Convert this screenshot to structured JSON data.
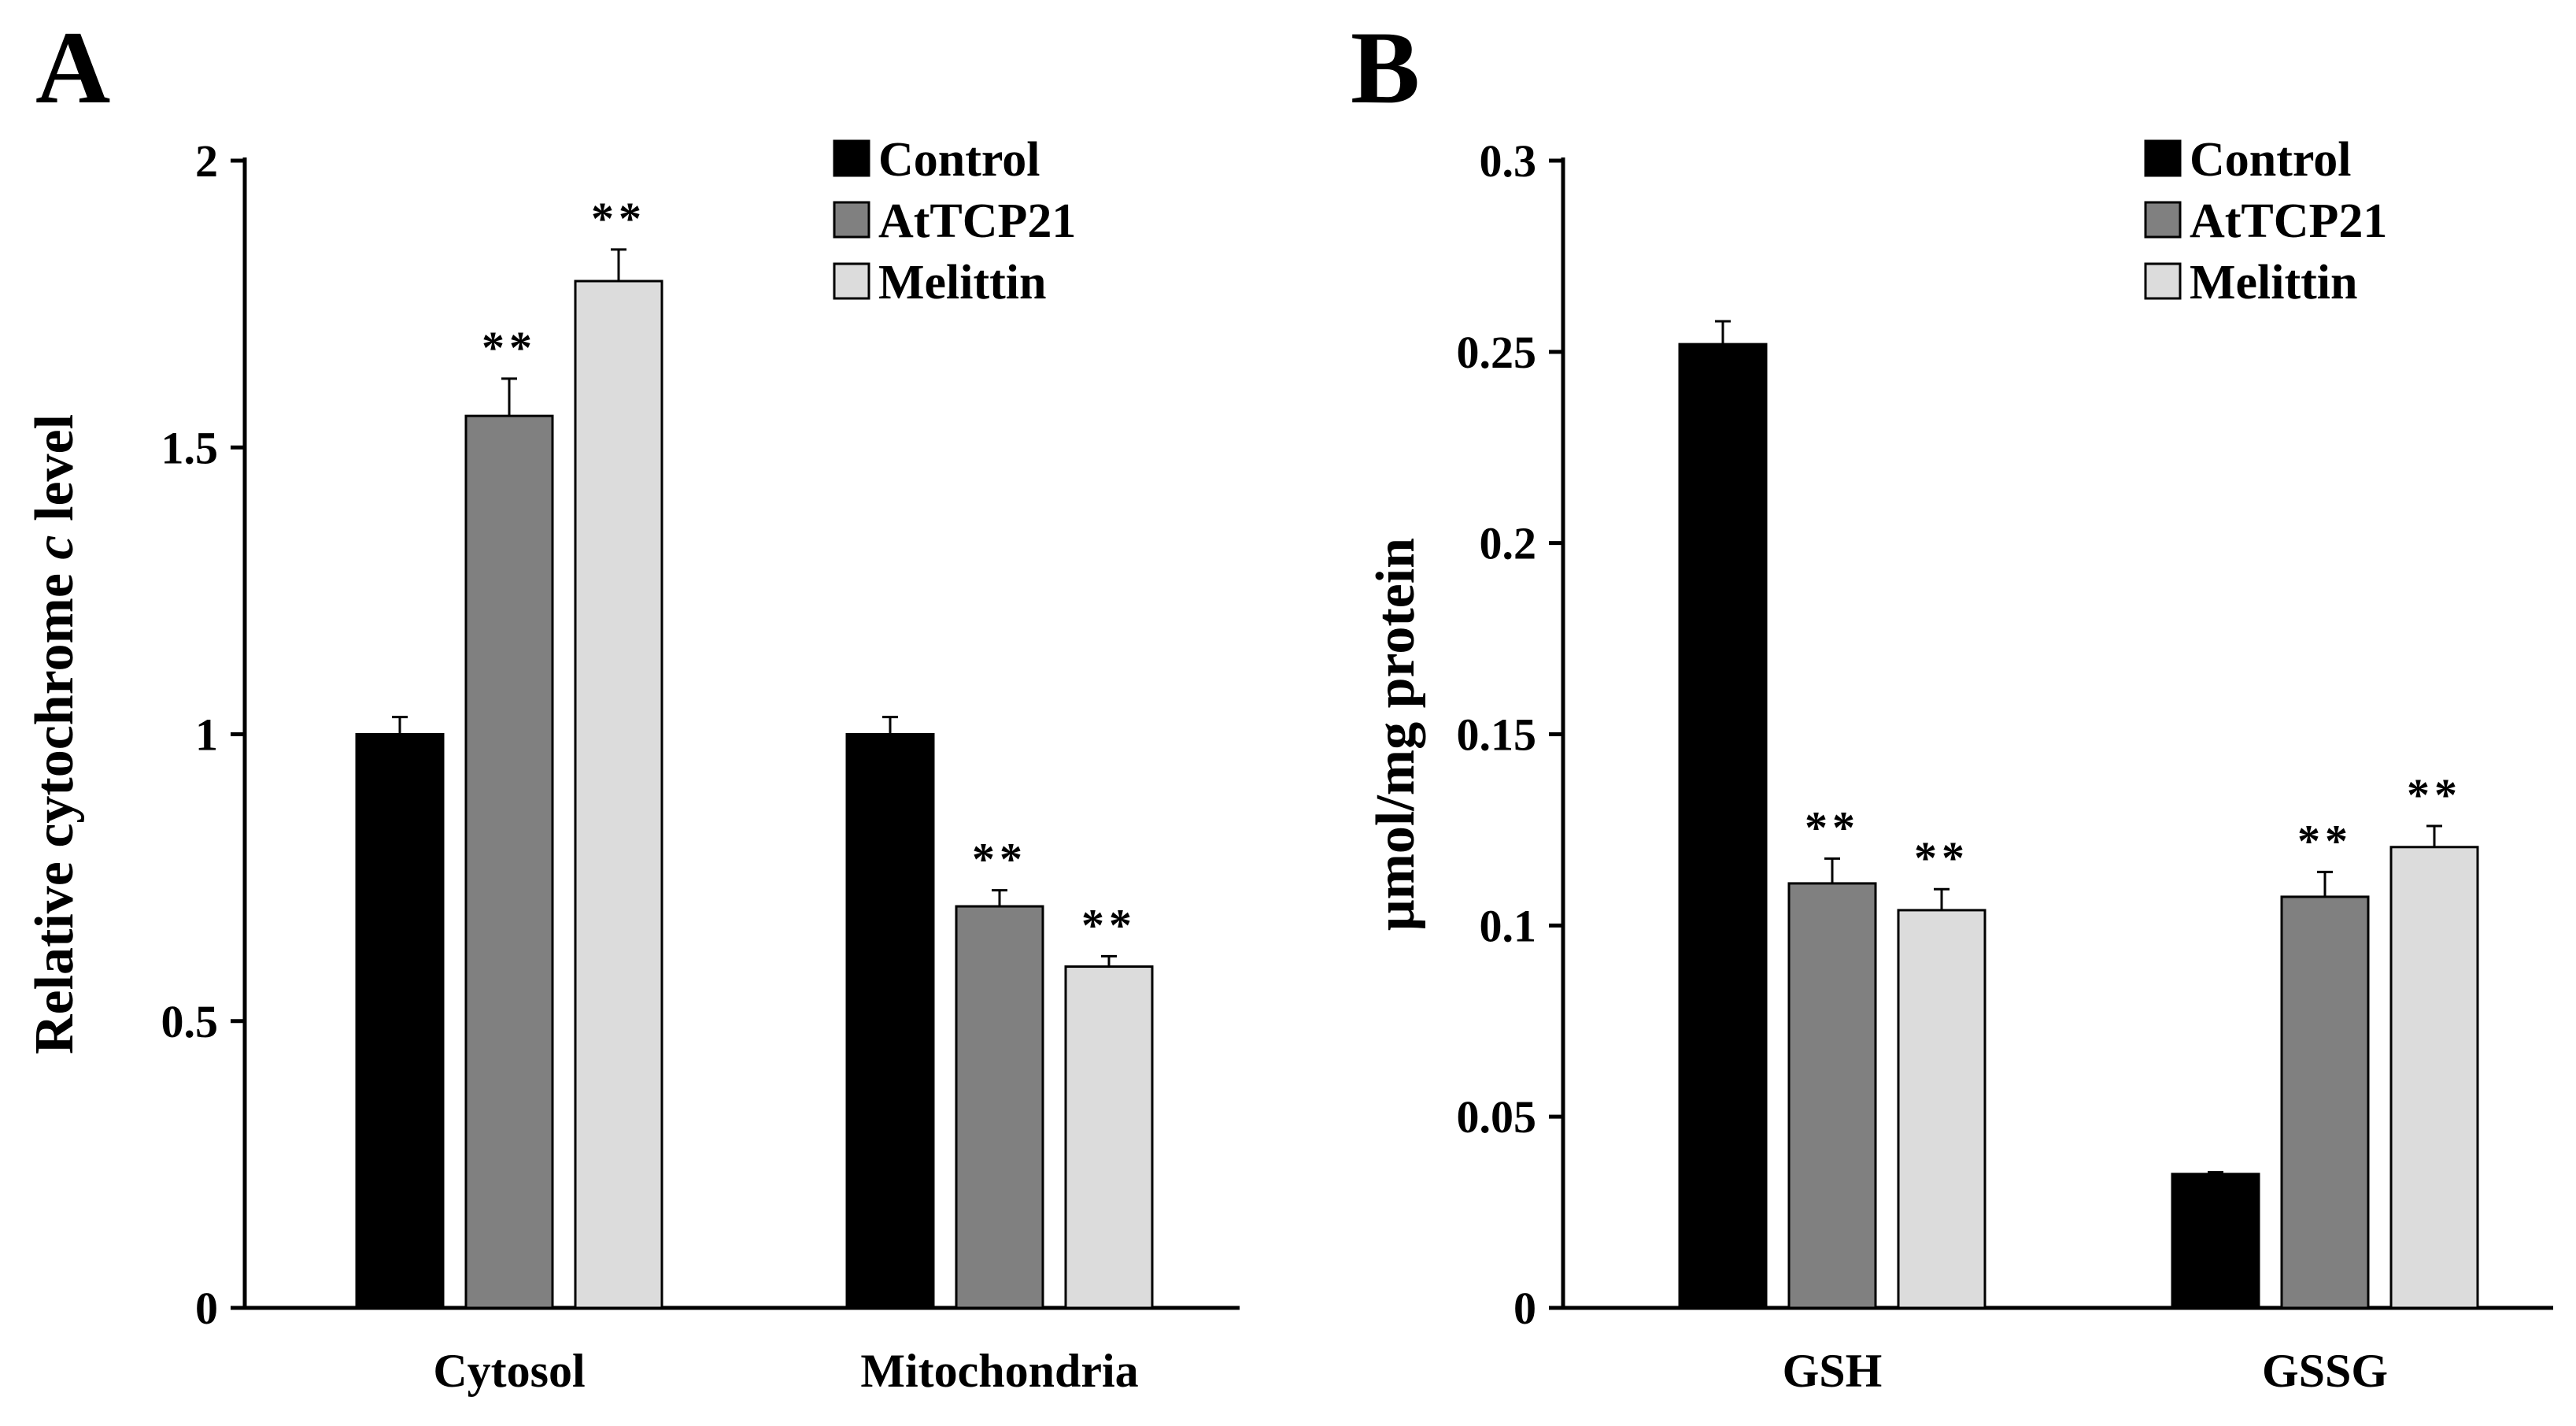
{
  "chart_data": [
    {
      "type": "bar",
      "panel_label": "A",
      "title": "",
      "xlabel": "",
      "ylabel_parts": [
        "Relative cytochrome ",
        "c",
        " level"
      ],
      "categories": [
        "Cytosol",
        "Mitochondria"
      ],
      "ylim": [
        0,
        2
      ],
      "yticks": [
        0,
        0.5,
        1,
        1.5,
        2
      ],
      "ytick_labels": [
        "0",
        "0.5",
        "1",
        "1.5",
        "2"
      ],
      "legend": {
        "position": "top-right",
        "entries": [
          "Control",
          "AtTCP21",
          "Melittin"
        ]
      },
      "grid": false,
      "series": [
        {
          "name": "Control",
          "color": "#000000",
          "values": [
            1.0,
            1.0
          ],
          "errors": [
            0.03,
            0.03
          ],
          "marks": [
            "",
            ""
          ]
        },
        {
          "name": "AtTCP21",
          "color": "#808080",
          "values": [
            1.555,
            0.7
          ],
          "errors": [
            0.065,
            0.028
          ],
          "marks": [
            "**",
            "**"
          ]
        },
        {
          "name": "Melittin",
          "color": "#dcdcdc",
          "values": [
            1.79,
            0.595
          ],
          "errors": [
            0.055,
            0.018
          ],
          "marks": [
            "**",
            "**"
          ]
        }
      ]
    },
    {
      "type": "bar",
      "panel_label": "B",
      "title": "",
      "xlabel": "",
      "ylabel_parts": [
        "μmol/mg protein"
      ],
      "categories": [
        "GSH",
        "GSSG"
      ],
      "ylim": [
        0,
        0.3
      ],
      "yticks": [
        0,
        0.05,
        0.1,
        0.15,
        0.2,
        0.25,
        0.3
      ],
      "ytick_labels": [
        "0",
        "0.05",
        "0.1",
        "0.15",
        "0.2",
        "0.25",
        "0.3"
      ],
      "legend": {
        "position": "top-right",
        "entries": [
          "Control",
          "AtTCP21",
          "Melittin"
        ]
      },
      "grid": false,
      "series": [
        {
          "name": "Control",
          "color": "#000000",
          "values": [
            0.252,
            0.035
          ],
          "errors": [
            0.006,
            0.0005
          ],
          "marks": [
            "",
            ""
          ]
        },
        {
          "name": "AtTCP21",
          "color": "#808080",
          "values": [
            0.111,
            0.1075
          ],
          "errors": [
            0.0065,
            0.0065
          ],
          "marks": [
            "**",
            "**"
          ]
        },
        {
          "name": "Melittin",
          "color": "#dcdcdc",
          "values": [
            0.104,
            0.1205
          ],
          "errors": [
            0.0055,
            0.0055
          ],
          "marks": [
            "**",
            "**"
          ]
        }
      ]
    }
  ]
}
